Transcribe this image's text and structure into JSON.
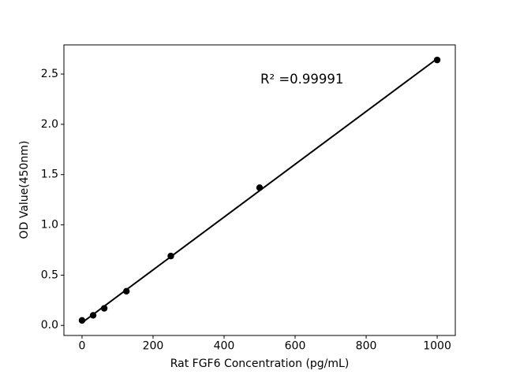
{
  "chart_data": {
    "type": "scatter",
    "title": "",
    "xlabel": "Rat FGF6 Concentration (pg/mL)",
    "ylabel": "OD Value(450nm)",
    "x": [
      0,
      31.25,
      62.5,
      125,
      250,
      500,
      1000
    ],
    "y": [
      0.05,
      0.1,
      0.17,
      0.34,
      0.69,
      1.37,
      2.64
    ],
    "fit_line": true,
    "annotation": {
      "text": "R² =0.99991",
      "x": 505,
      "y": 2.45
    },
    "xlim": [
      -51,
      1051
    ],
    "ylim": [
      -0.1,
      2.79
    ],
    "xticks": [
      "0",
      "200",
      "400",
      "600",
      "800",
      "1000"
    ],
    "yticks": [
      "0.0",
      "0.5",
      "1.0",
      "1.5",
      "2.0",
      "2.5"
    ],
    "grid": false,
    "legend_position": "none",
    "marker_color": "#000000",
    "line_color": "#000000",
    "axis_color": "#000000",
    "background_color": "#ffffff"
  }
}
